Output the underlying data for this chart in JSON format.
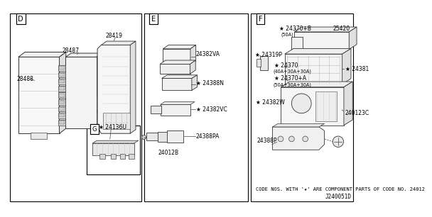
{
  "bg": "#ffffff",
  "fg": "#000000",
  "line_color": "#111111",
  "gray": "#888888",
  "light_gray": "#cccccc",
  "title": "J240051D",
  "footer": "CODE NOS. WITH '★' ARE COMPONENT PARTS OF CODE NO. 24012",
  "section_labels": [
    "D",
    "E",
    "F",
    "G"
  ],
  "font_size_label": 6.0,
  "font_size_code": 5.5,
  "font_size_footer": 5.0
}
